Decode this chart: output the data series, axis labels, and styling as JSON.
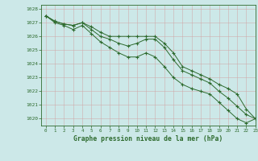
{
  "title": "Graphe pression niveau de la mer (hPa)",
  "background_color": "#cce8e8",
  "grid_color": "#b0c8c8",
  "line_color": "#2d6a2d",
  "xlim": [
    -0.5,
    23
  ],
  "ylim": [
    1019.5,
    1028.3
  ],
  "yticks": [
    1020,
    1021,
    1022,
    1023,
    1024,
    1025,
    1026,
    1027,
    1028
  ],
  "xticks": [
    0,
    1,
    2,
    3,
    4,
    5,
    6,
    7,
    8,
    9,
    10,
    11,
    12,
    13,
    14,
    15,
    16,
    17,
    18,
    19,
    20,
    21,
    22,
    23
  ],
  "series": [
    {
      "x": [
        0,
        1,
        2,
        3,
        4,
        5,
        6,
        7,
        8,
        9,
        10,
        11,
        12,
        13,
        14,
        15,
        16,
        17,
        18,
        19,
        20,
        21,
        22,
        23
      ],
      "y": [
        1027.5,
        1027.1,
        1026.9,
        1026.8,
        1027.0,
        1026.7,
        1026.3,
        1026.0,
        1026.0,
        1026.0,
        1026.0,
        1026.0,
        1026.0,
        1025.5,
        1024.8,
        1023.8,
        1023.5,
        1023.2,
        1022.9,
        1022.5,
        1022.2,
        1021.8,
        1020.7,
        1020.0
      ]
    },
    {
      "x": [
        0,
        1,
        2,
        3,
        4,
        5,
        6,
        7,
        8,
        9,
        10,
        11,
        12,
        13,
        14,
        15,
        16,
        17,
        18,
        19,
        20,
        21,
        22,
        23
      ],
      "y": [
        1027.5,
        1027.1,
        1026.9,
        1026.8,
        1027.0,
        1026.5,
        1026.0,
        1025.8,
        1025.5,
        1025.3,
        1025.5,
        1025.8,
        1025.8,
        1025.2,
        1024.3,
        1023.5,
        1023.2,
        1022.9,
        1022.6,
        1022.0,
        1021.5,
        1020.9,
        1020.3,
        1020.0
      ]
    },
    {
      "x": [
        0,
        1,
        2,
        3,
        4,
        5,
        6,
        7,
        8,
        9,
        10,
        11,
        12,
        13,
        14,
        15,
        16,
        17,
        18,
        19,
        20,
        21,
        22,
        23
      ],
      "y": [
        1027.5,
        1027.0,
        1026.8,
        1026.5,
        1026.8,
        1026.2,
        1025.6,
        1025.2,
        1024.8,
        1024.5,
        1024.5,
        1024.8,
        1024.5,
        1023.8,
        1023.0,
        1022.5,
        1022.2,
        1022.0,
        1021.8,
        1021.2,
        1020.6,
        1020.0,
        1019.7,
        1020.0
      ]
    }
  ]
}
